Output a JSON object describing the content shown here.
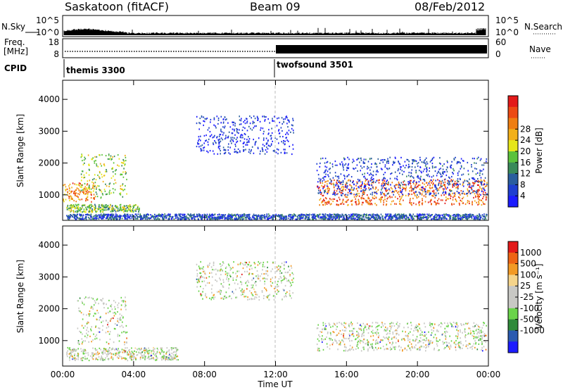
{
  "header": {
    "station": "Saskatoon (fitACF)",
    "beam": "Beam 09",
    "date": "08/Feb/2012"
  },
  "strips": {
    "nsky_label": "N.Sky",
    "nsky_ticks": [
      "10^5",
      "10^0"
    ],
    "nsearch_label": "N.Search",
    "nsearch_ticks": [
      "10^5",
      "10^0"
    ],
    "freq_label_1": "Freq.",
    "freq_label_2": "[MHz]",
    "freq_ticks": [
      "18",
      "8"
    ],
    "nave_label": "Nave",
    "nave_ticks": [
      "60",
      "0"
    ],
    "cpid_label": "CPID",
    "cpid_modes": [
      {
        "name": "themis 3300",
        "start_hour": 0
      },
      {
        "name": "twofsound 3501",
        "start_hour": 12
      }
    ]
  },
  "chart_data": [
    {
      "type": "heatmap",
      "name": "power",
      "ylabel": "Slant Range [km]",
      "xlabel": "Time UT",
      "xlim": [
        0,
        24
      ],
      "ylim": [
        200,
        4600
      ],
      "y_ticks": [
        "1000",
        "2000",
        "3000",
        "4000"
      ],
      "x_ticks": [
        "00:00",
        "04:00",
        "08:00",
        "12:00",
        "16:00",
        "20:00",
        "00:00"
      ],
      "colorbar": {
        "label": "Power [dB]",
        "ticks": [
          "4",
          "8",
          "12",
          "16",
          "20",
          "24",
          "28"
        ],
        "colors": [
          "#1c1cff",
          "#1f3fd0",
          "#2a5e9e",
          "#3a8a5a",
          "#5cc23c",
          "#e6e61a",
          "#f2b019",
          "#ef7e12",
          "#ec4a14",
          "#e31a1a"
        ]
      },
      "features": [
        {
          "desc": "near range band",
          "t0": 0.2,
          "t1": 23.9,
          "r0": 250,
          "r1": 420,
          "level": 0.2
        },
        {
          "desc": "morning echo",
          "t0": 0.0,
          "t1": 1.8,
          "r0": 800,
          "r1": 1400,
          "level": 0.75
        },
        {
          "desc": "rising arc",
          "t0": 1.0,
          "t1": 3.6,
          "r0": 900,
          "r1": 2300,
          "level": 0.5
        },
        {
          "desc": "lower morning",
          "t0": 0.2,
          "t1": 4.3,
          "r0": 480,
          "r1": 720,
          "level": 0.45
        },
        {
          "desc": "afternoon band",
          "t0": 14.3,
          "t1": 23.9,
          "r0": 700,
          "r1": 1500,
          "level": 0.8
        },
        {
          "desc": "afternoon upper",
          "t0": 14.3,
          "t1": 23.9,
          "r0": 1000,
          "r1": 2200,
          "level": 0.15
        },
        {
          "desc": "noon arc",
          "t0": 7.5,
          "t1": 13.0,
          "r0": 2300,
          "r1": 3500,
          "level": 0.1
        }
      ]
    },
    {
      "type": "heatmap",
      "name": "velocity",
      "ylabel": "Slant Range [km]",
      "xlabel": "Time UT",
      "xlim": [
        0,
        24
      ],
      "ylim": [
        200,
        4600
      ],
      "y_ticks": [
        "1000",
        "2000",
        "3000",
        "4000"
      ],
      "x_ticks": [
        "00:00",
        "04:00",
        "08:00",
        "12:00",
        "16:00",
        "20:00",
        "00:00"
      ],
      "colorbar": {
        "label": "Velocity [m s⁻¹]",
        "ticks": [
          "1000",
          "500",
          "100",
          "25",
          "-25",
          "-100",
          "-500",
          "-1000"
        ],
        "colors": [
          "#1c1cff",
          "#2a5ab0",
          "#2f8a3a",
          "#6ad34a",
          "#c8c8c4",
          "#c8c8c4",
          "#f5d48a",
          "#f29a25",
          "#ee6414",
          "#e31a1a"
        ]
      },
      "features": [
        {
          "desc": "morning low green",
          "t0": 0.2,
          "t1": 6.5,
          "r0": 400,
          "r1": 800,
          "level": 0.6
        },
        {
          "desc": "morning gray arc",
          "t0": 0.8,
          "t1": 3.6,
          "r0": 900,
          "r1": 2400,
          "level": 0.5
        },
        {
          "desc": "afternoon gray",
          "t0": 14.3,
          "t1": 23.9,
          "r0": 700,
          "r1": 1600,
          "level": 0.5
        },
        {
          "desc": "noon arc",
          "t0": 7.5,
          "t1": 13.0,
          "r0": 2300,
          "r1": 3500,
          "level": 0.5
        }
      ]
    }
  ]
}
